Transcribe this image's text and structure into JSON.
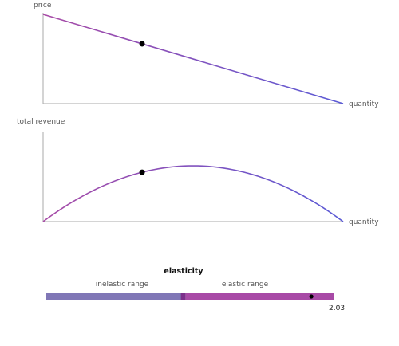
{
  "colors": {
    "curve_start": "#a84aa6",
    "curve_end": "#5b5bd6",
    "axis": "#aaaaaa",
    "dot": "#000000",
    "inelastic_bar": "#8077b6",
    "elastic_bar": "#a84aa6",
    "unit_marker": "#7b2f8a"
  },
  "demand_panel": {
    "y_label": "price",
    "x_label": "quantity",
    "point_quantity_fraction": 0.33
  },
  "revenue_panel": {
    "y_label": "total revenue",
    "x_label": "quantity",
    "point_quantity_fraction": 0.33
  },
  "elasticity_panel": {
    "title": "elasticity",
    "inelastic_label": "inelastic range",
    "elastic_label": "elastic range",
    "value_label": "2.03",
    "unit_elastic_fraction": 0.47,
    "marker_fraction": 0.92
  }
}
